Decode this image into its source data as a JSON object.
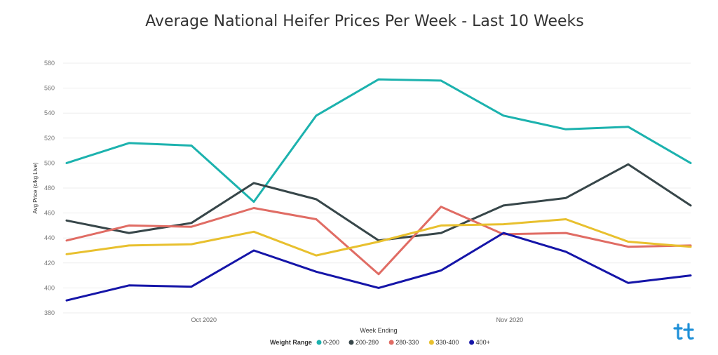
{
  "chart_data": {
    "type": "line",
    "title": "Average National Heifer Prices Per Week - Last 10 Weeks",
    "xlabel": "Week Ending",
    "ylabel": "Avg Price (c/kg Live)",
    "x_tick_labels": [
      "Oct 2020",
      "Nov 2020"
    ],
    "y_ticks": [
      380,
      400,
      420,
      440,
      460,
      480,
      500,
      520,
      540,
      560,
      580
    ],
    "ylim": [
      380,
      580
    ],
    "grid": true,
    "legend_title": "Weight Range",
    "legend_position": "bottom",
    "series": [
      {
        "name": "0-200",
        "color": "#1CB2AE",
        "values": [
          500,
          516,
          514,
          469,
          538,
          567,
          566,
          538,
          527,
          529,
          500
        ]
      },
      {
        "name": "200-280",
        "color": "#374649",
        "values": [
          454,
          444,
          452,
          484,
          471,
          438,
          444,
          466,
          472,
          499,
          466
        ]
      },
      {
        "name": "280-330",
        "color": "#E06C64",
        "values": [
          438,
          450,
          449,
          464,
          455,
          411,
          465,
          443,
          444,
          433,
          434
        ]
      },
      {
        "name": "330-400",
        "color": "#E8C02E",
        "values": [
          427,
          434,
          435,
          445,
          426,
          437,
          450,
          451,
          455,
          437,
          433
        ]
      },
      {
        "name": "400+",
        "color": "#1515A8",
        "values": [
          390,
          402,
          401,
          430,
          413,
          400,
          414,
          444,
          429,
          404,
          410
        ]
      }
    ]
  }
}
